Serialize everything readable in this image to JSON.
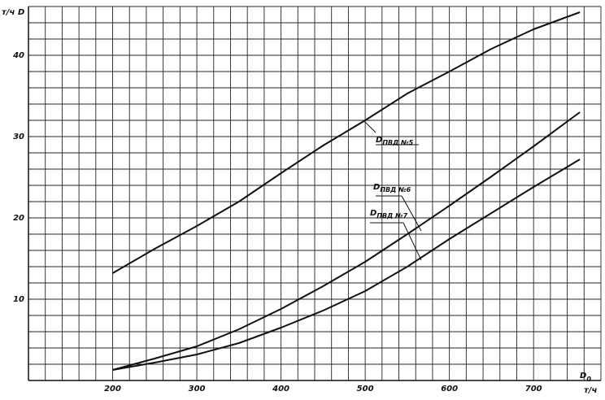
{
  "chart_data": {
    "type": "line",
    "y_unit": "т/ч",
    "y_symbol": "D",
    "x_symbol": "D",
    "x_symbol_sub": "0",
    "x_unit": "т/ч",
    "x": [
      200,
      250,
      300,
      350,
      400,
      450,
      500,
      550,
      600,
      650,
      700,
      755
    ],
    "series": [
      {
        "label_main": "D",
        "label_sub": "ПВД №5",
        "color": "#111",
        "values": [
          13.2,
          16.2,
          19,
          22,
          25.5,
          28.9,
          32,
          35.3,
          38,
          40.8,
          43.2,
          45.3
        ]
      },
      {
        "label_main": "D",
        "label_sub": "ПВД №6",
        "color": "#111",
        "values": [
          1.3,
          2.7,
          4.2,
          6.3,
          8.8,
          11.6,
          14.6,
          18,
          21.5,
          25.1,
          28.8,
          33
        ]
      },
      {
        "label_main": "D",
        "label_sub": "ПВД №7",
        "color": "#111",
        "values": [
          1.3,
          2.2,
          3.2,
          4.6,
          6.5,
          8.6,
          11,
          14,
          17.4,
          20.6,
          23.8,
          27.2
        ]
      }
    ],
    "xlim": [
      100,
      780
    ],
    "ylim": [
      0,
      46
    ],
    "xticks": [
      200,
      300,
      400,
      500,
      600,
      700
    ],
    "yticks": [
      10,
      20,
      30,
      40
    ],
    "x_grid_step": 20,
    "y_grid_step": 2,
    "grid": true
  }
}
